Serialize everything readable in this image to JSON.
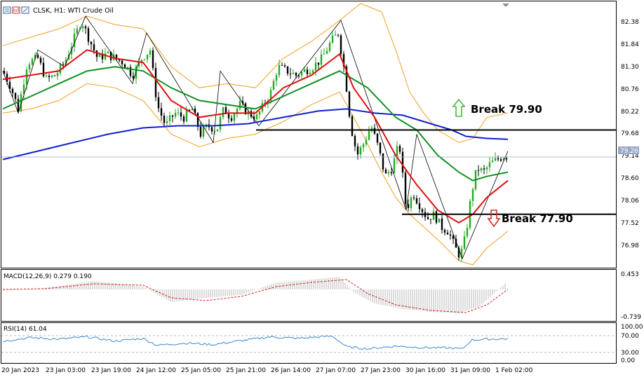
{
  "header": {
    "title": "CLSK, H1:  WTI Crude Oil"
  },
  "annotations": {
    "break_up": "Break 79.90",
    "break_down": "Break 77.90"
  },
  "colors": {
    "background": "#ffffff",
    "frame": "#000000",
    "bull_candle": "#22aa22",
    "bear_candle": "#000000",
    "ma_fast": "#e01010",
    "ma_mid": "#109020",
    "ma_slow": "#1020d0",
    "bollinger": "#f0a020",
    "price_line": "#9aa8c8",
    "arrow_up": "#44bb44",
    "arrow_down": "#d03030"
  },
  "price_axis": {
    "labels": [
      "82.38",
      "81.84",
      "81.30",
      "80.76",
      "80.22",
      "79.68",
      "79.14",
      "78.60",
      "78.06",
      "77.52",
      "76.98"
    ],
    "current_price": "79.26"
  },
  "macd_panel": {
    "label": "MACD(12,26,9) 0.279 0.190",
    "axis_labels": [
      "0.453",
      "-0.739"
    ]
  },
  "rsi_panel": {
    "label": "RSI(14) 61.04",
    "axis_labels": [
      "100.00",
      "70.00",
      "30.00",
      "0.00"
    ]
  },
  "time_axis": {
    "labels": [
      "20 Jan 2023",
      "23 Jan 03:00",
      "23 Jan 19:00",
      "24 Jan 12:00",
      "25 Jan 05:00",
      "25 Jan 21:00",
      "26 Jan 14:00",
      "27 Jan 07:00",
      "27 Jan 23:00",
      "30 Jan 16:00",
      "31 Jan 09:00",
      "1 Feb 02:00"
    ]
  },
  "chart_data": {
    "type": "candlestick",
    "instrument": "WTI Crude Oil",
    "symbol": "CLSK",
    "timeframe": "H1",
    "current_price": 79.26,
    "levels": [
      {
        "label": "Break 79.90",
        "price": 79.9,
        "direction": "up"
      },
      {
        "label": "Break 77.90",
        "price": 77.9,
        "direction": "down"
      }
    ],
    "close_path": [
      [
        0,
        81.3
      ],
      [
        12,
        80.9
      ],
      [
        22,
        80.4
      ],
      [
        35,
        81.5
      ],
      [
        50,
        81.6
      ],
      [
        62,
        81.1
      ],
      [
        75,
        81.2
      ],
      [
        88,
        81.5
      ],
      [
        100,
        82.0
      ],
      [
        112,
        82.5
      ],
      [
        122,
        82.1
      ],
      [
        135,
        81.6
      ],
      [
        148,
        81.7
      ],
      [
        160,
        81.6
      ],
      [
        172,
        81.5
      ],
      [
        185,
        81.2
      ],
      [
        198,
        81.6
      ],
      [
        210,
        81.8
      ],
      [
        220,
        80.5
      ],
      [
        232,
        80.0
      ],
      [
        245,
        80.3
      ],
      [
        258,
        80.2
      ],
      [
        270,
        80.4
      ],
      [
        282,
        79.8
      ],
      [
        292,
        80.0
      ],
      [
        305,
        79.9
      ],
      [
        315,
        80.4
      ],
      [
        325,
        80.2
      ],
      [
        338,
        80.5
      ],
      [
        350,
        80.3
      ],
      [
        362,
        80.2
      ],
      [
        372,
        80.5
      ],
      [
        382,
        80.8
      ],
      [
        392,
        81.4
      ],
      [
        405,
        81.3
      ],
      [
        418,
        81.2
      ],
      [
        430,
        81.3
      ],
      [
        442,
        81.4
      ],
      [
        455,
        81.6
      ],
      [
        468,
        82.0
      ],
      [
        478,
        82.2
      ],
      [
        488,
        81.2
      ],
      [
        496,
        80.0
      ],
      [
        505,
        79.3
      ],
      [
        515,
        79.6
      ],
      [
        525,
        80.0
      ],
      [
        535,
        79.5
      ],
      [
        545,
        78.8
      ],
      [
        555,
        79.0
      ],
      [
        565,
        79.6
      ],
      [
        575,
        78.0
      ],
      [
        585,
        78.4
      ],
      [
        595,
        78.1
      ],
      [
        605,
        77.8
      ],
      [
        615,
        77.9
      ],
      [
        625,
        77.6
      ],
      [
        635,
        77.5
      ],
      [
        645,
        77.1
      ],
      [
        652,
        76.9
      ],
      [
        660,
        77.4
      ],
      [
        668,
        78.4
      ],
      [
        676,
        79.0
      ],
      [
        685,
        78.9
      ],
      [
        695,
        79.1
      ],
      [
        705,
        79.2
      ],
      [
        715,
        79.3
      ],
      [
        720,
        79.26
      ]
    ],
    "ma_fast": [
      [
        0,
        81.1
      ],
      [
        40,
        81.2
      ],
      [
        80,
        81.3
      ],
      [
        120,
        81.8
      ],
      [
        160,
        81.6
      ],
      [
        200,
        81.5
      ],
      [
        240,
        80.6
      ],
      [
        280,
        80.2
      ],
      [
        320,
        80.3
      ],
      [
        360,
        80.3
      ],
      [
        400,
        80.9
      ],
      [
        440,
        81.2
      ],
      [
        480,
        81.7
      ],
      [
        500,
        80.9
      ],
      [
        530,
        80.2
      ],
      [
        560,
        79.3
      ],
      [
        590,
        78.6
      ],
      [
        620,
        78.0
      ],
      [
        650,
        77.7
      ],
      [
        670,
        77.9
      ],
      [
        690,
        78.3
      ],
      [
        720,
        78.7
      ]
    ],
    "ma_mid": [
      [
        0,
        80.4
      ],
      [
        40,
        80.7
      ],
      [
        80,
        81.0
      ],
      [
        120,
        81.3
      ],
      [
        160,
        81.4
      ],
      [
        200,
        81.3
      ],
      [
        240,
        80.9
      ],
      [
        280,
        80.6
      ],
      [
        320,
        80.5
      ],
      [
        360,
        80.4
      ],
      [
        400,
        80.7
      ],
      [
        440,
        81.0
      ],
      [
        480,
        81.3
      ],
      [
        520,
        80.9
      ],
      [
        560,
        80.2
      ],
      [
        590,
        79.9
      ],
      [
        620,
        79.3
      ],
      [
        650,
        78.9
      ],
      [
        670,
        78.7
      ],
      [
        690,
        78.8
      ],
      [
        720,
        78.9
      ]
    ],
    "ma_slow": [
      [
        0,
        79.2
      ],
      [
        50,
        79.4
      ],
      [
        100,
        79.6
      ],
      [
        150,
        79.8
      ],
      [
        200,
        79.95
      ],
      [
        250,
        80.0
      ],
      [
        300,
        80.0
      ],
      [
        350,
        80.05
      ],
      [
        400,
        80.2
      ],
      [
        450,
        80.35
      ],
      [
        490,
        80.4
      ],
      [
        530,
        80.3
      ],
      [
        570,
        80.25
      ],
      [
        610,
        80.05
      ],
      [
        640,
        79.9
      ],
      [
        660,
        79.75
      ],
      [
        690,
        79.7
      ],
      [
        720,
        79.68
      ]
    ],
    "bollinger_upper": [
      [
        0,
        81.9
      ],
      [
        40,
        82.1
      ],
      [
        80,
        82.3
      ],
      [
        120,
        82.6
      ],
      [
        160,
        82.4
      ],
      [
        200,
        82.3
      ],
      [
        240,
        81.4
      ],
      [
        280,
        80.9
      ],
      [
        320,
        81.0
      ],
      [
        360,
        80.9
      ],
      [
        400,
        81.6
      ],
      [
        440,
        82.0
      ],
      [
        480,
        82.5
      ],
      [
        510,
        82.9
      ],
      [
        540,
        82.7
      ],
      [
        560,
        81.8
      ],
      [
        580,
        80.8
      ],
      [
        600,
        80.3
      ],
      [
        620,
        79.9
      ],
      [
        650,
        79.6
      ],
      [
        670,
        79.7
      ],
      [
        690,
        80.2
      ],
      [
        720,
        80.3
      ]
    ],
    "bollinger_lower": [
      [
        0,
        80.3
      ],
      [
        40,
        80.4
      ],
      [
        80,
        80.6
      ],
      [
        120,
        81.0
      ],
      [
        160,
        80.9
      ],
      [
        200,
        80.6
      ],
      [
        240,
        79.8
      ],
      [
        280,
        79.5
      ],
      [
        320,
        79.7
      ],
      [
        360,
        79.8
      ],
      [
        400,
        80.1
      ],
      [
        440,
        80.5
      ],
      [
        480,
        80.8
      ],
      [
        510,
        79.9
      ],
      [
        540,
        78.9
      ],
      [
        560,
        78.3
      ],
      [
        580,
        77.9
      ],
      [
        600,
        77.6
      ],
      [
        620,
        77.3
      ],
      [
        650,
        76.8
      ],
      [
        670,
        76.7
      ],
      [
        690,
        77.1
      ],
      [
        720,
        77.5
      ]
    ],
    "macd": {
      "value": 0.279,
      "signal": 0.19,
      "params": "12,26,9"
    },
    "rsi": {
      "value": 61.04,
      "period": 14,
      "levels": [
        70,
        30
      ]
    },
    "yrange": [
      76.7,
      82.9
    ]
  }
}
